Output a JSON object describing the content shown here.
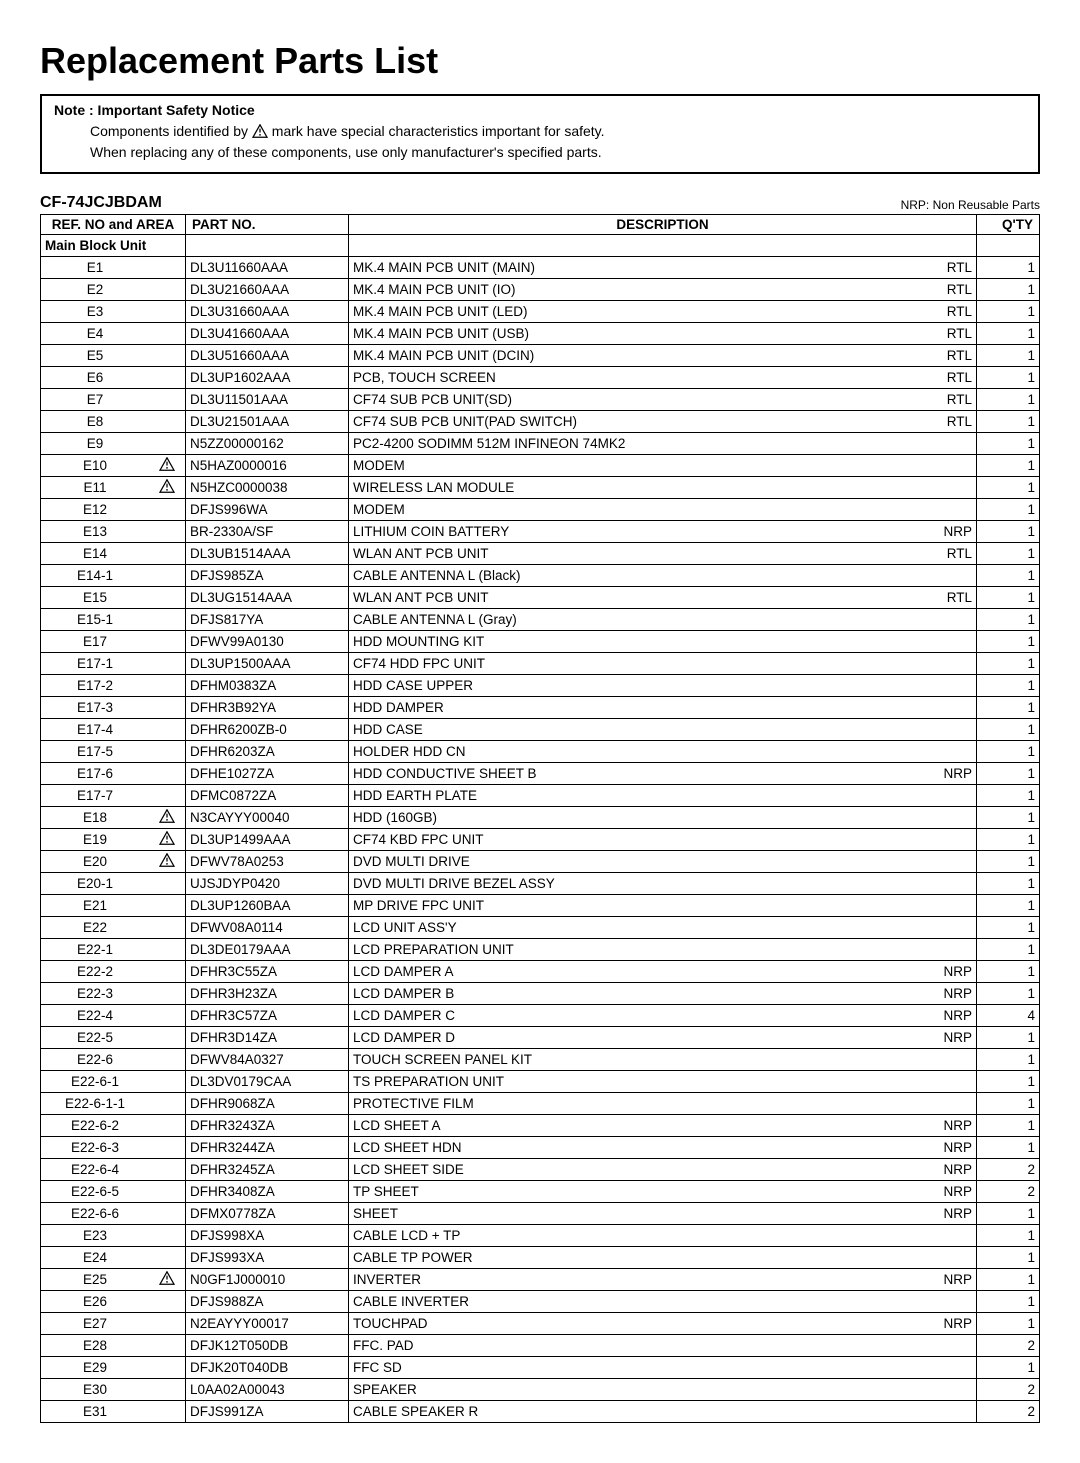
{
  "title": "Replacement Parts List",
  "note_label": "Note : Important Safety Notice",
  "note_line1a": "Components identified by",
  "note_line1b": "mark have special characteristics important for safety.",
  "note_line2": "When replacing any of these components, use only manufacturer's specified parts.",
  "model": "CF-74JCJBDAM",
  "nrp_legend": "NRP: Non Reusable Parts",
  "headers": {
    "ref": "REF. NO and  AREA",
    "part": "PART NO.",
    "desc": "DESCRIPTION",
    "qty": "Q'TY"
  },
  "section": "Main Block Unit",
  "rows": [
    {
      "ref": "E1",
      "warn": false,
      "part": "DL3U11660AAA",
      "desc": "MK.4 MAIN PCB UNIT (MAIN)",
      "tag": "RTL",
      "qty": "1"
    },
    {
      "ref": "E2",
      "warn": false,
      "part": "DL3U21660AAA",
      "desc": "MK.4 MAIN PCB UNIT (IO)",
      "tag": "RTL",
      "qty": "1"
    },
    {
      "ref": "E3",
      "warn": false,
      "part": "DL3U31660AAA",
      "desc": "MK.4 MAIN PCB UNIT (LED)",
      "tag": "RTL",
      "qty": "1"
    },
    {
      "ref": "E4",
      "warn": false,
      "part": "DL3U41660AAA",
      "desc": "MK.4 MAIN PCB UNIT (USB)",
      "tag": "RTL",
      "qty": "1"
    },
    {
      "ref": "E5",
      "warn": false,
      "part": "DL3U51660AAA",
      "desc": "MK.4 MAIN PCB UNIT (DCIN)",
      "tag": "RTL",
      "qty": "1"
    },
    {
      "ref": "E6",
      "warn": false,
      "part": "DL3UP1602AAA",
      "desc": "PCB, TOUCH SCREEN",
      "tag": "RTL",
      "qty": "1"
    },
    {
      "ref": "E7",
      "warn": false,
      "part": "DL3U11501AAA",
      "desc": "CF74 SUB PCB UNIT(SD)",
      "tag": "RTL",
      "qty": "1"
    },
    {
      "ref": "E8",
      "warn": false,
      "part": "DL3U21501AAA",
      "desc": "CF74 SUB PCB UNIT(PAD SWITCH)",
      "tag": "RTL",
      "qty": "1"
    },
    {
      "ref": "E9",
      "warn": false,
      "part": "N5ZZ00000162",
      "desc": "PC2-4200 SODIMM 512M INFINEON 74MK2",
      "tag": "",
      "qty": "1"
    },
    {
      "ref": "E10",
      "warn": true,
      "part": "N5HAZ0000016",
      "desc": "MODEM",
      "tag": "",
      "qty": "1"
    },
    {
      "ref": "E11",
      "warn": true,
      "part": "N5HZC0000038",
      "desc": "WIRELESS LAN MODULE",
      "tag": "",
      "qty": "1"
    },
    {
      "ref": "E12",
      "warn": false,
      "part": "DFJS996WA",
      "desc": "MODEM",
      "tag": "",
      "qty": "1"
    },
    {
      "ref": "E13",
      "warn": false,
      "part": "BR-2330A/SF",
      "desc": "LITHIUM COIN BATTERY",
      "tag": "NRP",
      "qty": "1"
    },
    {
      "ref": "E14",
      "warn": false,
      "part": "DL3UB1514AAA",
      "desc": "WLAN ANT PCB UNIT",
      "tag": "RTL",
      "qty": "1"
    },
    {
      "ref": "E14-1",
      "warn": false,
      "part": "DFJS985ZA",
      "desc": "CABLE ANTENNA L (Black)",
      "tag": "",
      "qty": "1"
    },
    {
      "ref": "E15",
      "warn": false,
      "part": "DL3UG1514AAA",
      "desc": "WLAN ANT PCB UNIT",
      "tag": "RTL",
      "qty": "1"
    },
    {
      "ref": "E15-1",
      "warn": false,
      "part": "DFJS817YA",
      "desc": "CABLE ANTENNA L (Gray)",
      "tag": "",
      "qty": "1"
    },
    {
      "ref": "E17",
      "warn": false,
      "part": "DFWV99A0130",
      "desc": "HDD MOUNTING KIT",
      "tag": "",
      "qty": "1"
    },
    {
      "ref": "E17-1",
      "warn": false,
      "part": "DL3UP1500AAA",
      "desc": "CF74 HDD FPC UNIT",
      "tag": "",
      "qty": "1"
    },
    {
      "ref": "E17-2",
      "warn": false,
      "part": "DFHM0383ZA",
      "desc": "HDD CASE UPPER",
      "tag": "",
      "qty": "1"
    },
    {
      "ref": "E17-3",
      "warn": false,
      "part": "DFHR3B92YA",
      "desc": "HDD DAMPER",
      "tag": "",
      "qty": "1"
    },
    {
      "ref": "E17-4",
      "warn": false,
      "part": "DFHR6200ZB-0",
      "desc": "HDD CASE",
      "tag": "",
      "qty": "1"
    },
    {
      "ref": "E17-5",
      "warn": false,
      "part": "DFHR6203ZA",
      "desc": "HOLDER HDD CN",
      "tag": "",
      "qty": "1"
    },
    {
      "ref": "E17-6",
      "warn": false,
      "part": "DFHE1027ZA",
      "desc": "HDD CONDUCTIVE SHEET B",
      "tag": "NRP",
      "qty": "1"
    },
    {
      "ref": "E17-7",
      "warn": false,
      "part": "DFMC0872ZA",
      "desc": "HDD EARTH PLATE",
      "tag": "",
      "qty": "1"
    },
    {
      "ref": "E18",
      "warn": true,
      "part": "N3CAYYY00040",
      "desc": "HDD (160GB)",
      "tag": "",
      "qty": "1"
    },
    {
      "ref": "E19",
      "warn": true,
      "part": "DL3UP1499AAA",
      "desc": "CF74 KBD FPC UNIT",
      "tag": "",
      "qty": "1"
    },
    {
      "ref": "E20",
      "warn": true,
      "part": "DFWV78A0253",
      "desc": "DVD MULTI DRIVE",
      "tag": "",
      "qty": "1"
    },
    {
      "ref": "E20-1",
      "warn": false,
      "part": "UJSJDYP0420",
      "desc": "DVD MULTI DRIVE BEZEL ASSY",
      "tag": "",
      "qty": "1"
    },
    {
      "ref": "E21",
      "warn": false,
      "part": "DL3UP1260BAA",
      "desc": "MP DRIVE FPC UNIT",
      "tag": "",
      "qty": "1"
    },
    {
      "ref": "E22",
      "warn": false,
      "part": "DFWV08A0114",
      "desc": "LCD UNIT ASS'Y",
      "tag": "",
      "qty": "1"
    },
    {
      "ref": "E22-1",
      "warn": false,
      "part": "DL3DE0179AAA",
      "desc": "LCD PREPARATION UNIT",
      "tag": "",
      "qty": "1"
    },
    {
      "ref": "E22-2",
      "warn": false,
      "part": "DFHR3C55ZA",
      "desc": "LCD DAMPER A",
      "tag": "NRP",
      "qty": "1"
    },
    {
      "ref": "E22-3",
      "warn": false,
      "part": "DFHR3H23ZA",
      "desc": "LCD DAMPER B",
      "tag": "NRP",
      "qty": "1"
    },
    {
      "ref": "E22-4",
      "warn": false,
      "part": "DFHR3C57ZA",
      "desc": "LCD DAMPER C",
      "tag": "NRP",
      "qty": "4"
    },
    {
      "ref": "E22-5",
      "warn": false,
      "part": "DFHR3D14ZA",
      "desc": "LCD DAMPER D",
      "tag": "NRP",
      "qty": "1"
    },
    {
      "ref": "E22-6",
      "warn": false,
      "part": "DFWV84A0327",
      "desc": "TOUCH SCREEN PANEL KIT",
      "tag": "",
      "qty": "1"
    },
    {
      "ref": "E22-6-1",
      "warn": false,
      "part": "DL3DV0179CAA",
      "desc": "TS PREPARATION UNIT",
      "tag": "",
      "qty": "1"
    },
    {
      "ref": "E22-6-1-1",
      "warn": false,
      "part": "DFHR9068ZA",
      "desc": "PROTECTIVE FILM",
      "tag": "",
      "qty": "1"
    },
    {
      "ref": "E22-6-2",
      "warn": false,
      "part": "DFHR3243ZA",
      "desc": "LCD SHEET A",
      "tag": "NRP",
      "qty": "1"
    },
    {
      "ref": "E22-6-3",
      "warn": false,
      "part": "DFHR3244ZA",
      "desc": "LCD SHEET HDN",
      "tag": "NRP",
      "qty": "1"
    },
    {
      "ref": "E22-6-4",
      "warn": false,
      "part": "DFHR3245ZA",
      "desc": "LCD  SHEET SIDE",
      "tag": "NRP",
      "qty": "2"
    },
    {
      "ref": "E22-6-5",
      "warn": false,
      "part": "DFHR3408ZA",
      "desc": "TP SHEET",
      "tag": "NRP",
      "qty": "2"
    },
    {
      "ref": "E22-6-6",
      "warn": false,
      "part": "DFMX0778ZA",
      "desc": "SHEET",
      "tag": "NRP",
      "qty": "1"
    },
    {
      "ref": "E23",
      "warn": false,
      "part": "DFJS998XA",
      "desc": "CABLE LCD + TP",
      "tag": "",
      "qty": "1"
    },
    {
      "ref": "E24",
      "warn": false,
      "part": "DFJS993XA",
      "desc": "CABLE TP POWER",
      "tag": "",
      "qty": "1"
    },
    {
      "ref": "E25",
      "warn": true,
      "part": "N0GF1J000010",
      "desc": "INVERTER",
      "tag": "NRP",
      "qty": "1"
    },
    {
      "ref": "E26",
      "warn": false,
      "part": "DFJS988ZA",
      "desc": "CABLE INVERTER",
      "tag": "",
      "qty": "1"
    },
    {
      "ref": "E27",
      "warn": false,
      "part": "N2EAYYY00017",
      "desc": "TOUCHPAD",
      "tag": "NRP",
      "qty": "1"
    },
    {
      "ref": "E28",
      "warn": false,
      "part": "DFJK12T050DB",
      "desc": "FFC. PAD",
      "tag": "",
      "qty": "2"
    },
    {
      "ref": "E29",
      "warn": false,
      "part": "DFJK20T040DB",
      "desc": "FFC SD",
      "tag": "",
      "qty": "1"
    },
    {
      "ref": "E30",
      "warn": false,
      "part": "L0AA02A00043",
      "desc": "SPEAKER",
      "tag": "",
      "qty": "2"
    },
    {
      "ref": "E31",
      "warn": false,
      "part": "DFJS991ZA",
      "desc": "CABLE SPEAKER R",
      "tag": "",
      "qty": "2"
    }
  ]
}
